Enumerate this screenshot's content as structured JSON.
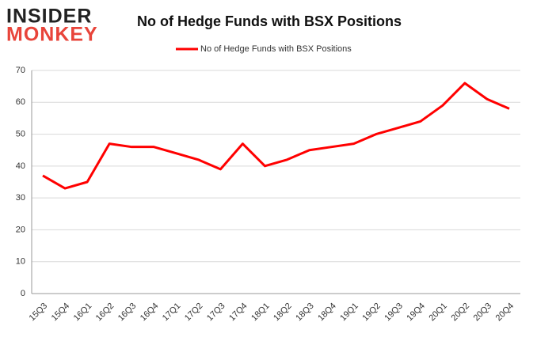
{
  "logo": {
    "line1": "INSIDER",
    "line2": "MONKEY"
  },
  "chart_data": {
    "type": "line",
    "title": "No of Hedge Funds with BSX Positions",
    "categories": [
      "15Q3",
      "15Q4",
      "16Q1",
      "16Q2",
      "16Q3",
      "16Q4",
      "17Q1",
      "17Q2",
      "17Q3",
      "17Q4",
      "18Q1",
      "18Q2",
      "18Q3",
      "18Q4",
      "19Q1",
      "19Q2",
      "19Q3",
      "19Q4",
      "20Q1",
      "20Q2",
      "20Q3",
      "20Q4"
    ],
    "series": [
      {
        "name": "No of Hedge Funds with BSX Positions",
        "color": "#ff0000",
        "values": [
          37,
          33,
          35,
          47,
          46,
          46,
          44,
          42,
          39,
          47,
          40,
          42,
          45,
          46,
          47,
          50,
          52,
          54,
          59,
          66,
          61,
          58
        ]
      }
    ],
    "ylim": [
      0,
      70
    ],
    "yticks": [
      0,
      10,
      20,
      30,
      40,
      50,
      60,
      70
    ],
    "grid": true,
    "legend": "top"
  }
}
